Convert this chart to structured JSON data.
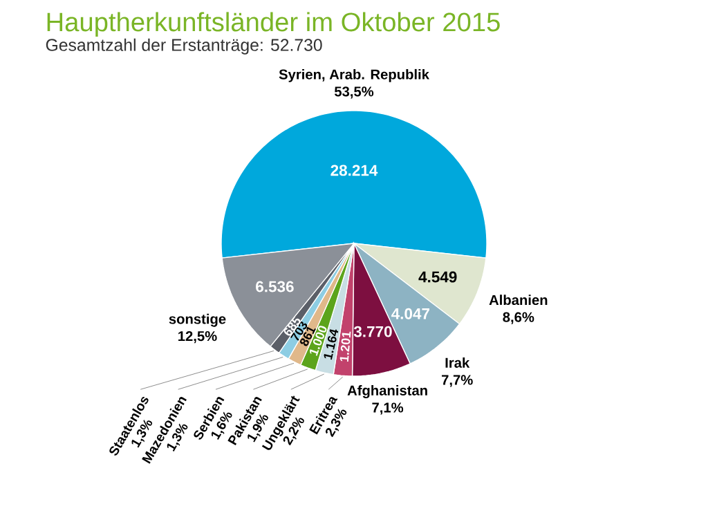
{
  "chart_data": {
    "type": "pie",
    "title": "Hauptherkunftsländer im Oktober 2015",
    "subtitle": "Gesamtzahl der Erstanträge: 52.730",
    "categories": [
      "Syrien, Arab. Republik",
      "Albanien",
      "Irak",
      "Afghanistan",
      "Eritrea",
      "Ungeklärt",
      "Pakistan",
      "Serbien",
      "Mazedonien",
      "Staatenlos",
      "sonstige"
    ],
    "values": [
      28214,
      4549,
      4047,
      3770,
      1201,
      1164,
      1000,
      861,
      703,
      685,
      6536
    ],
    "value_labels": [
      "28.214",
      "4.549",
      "4.047",
      "3.770",
      "1.201",
      "1.164",
      "1.000",
      "861",
      "703",
      "685",
      "6.536"
    ],
    "colors": [
      "#00a8dc",
      "#dfe6cf",
      "#8db3c3",
      "#7d0f40",
      "#c2426c",
      "#c8dee4",
      "#5ca41b",
      "#e0b88a",
      "#8dcde3",
      "#5b5f68",
      "#8b9098"
    ],
    "annotations": [
      "53,5%",
      "8,6%",
      "7,7%",
      "7,1%",
      "2,3%",
      "2,2%",
      "1,9%",
      "1,6%",
      "1,3%",
      "1,3%",
      "12,5%"
    ],
    "legend": false
  }
}
